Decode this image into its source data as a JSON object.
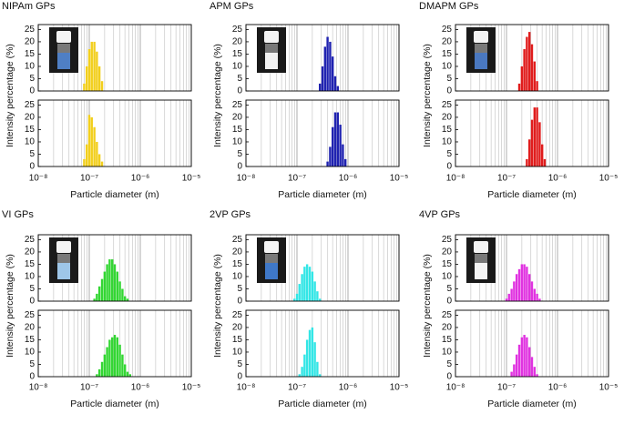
{
  "chart_data": [
    {
      "type": "histogram",
      "title": "NIPAm GPs",
      "xlabel": "Particle diameter (m)",
      "ylabel": "Intensity percentage (%)",
      "color": "#f2cf1d",
      "log_x": true,
      "minor_grid": true,
      "xlim": [
        1e-08,
        1e-05
      ],
      "xticks": [
        {
          "value": 1e-08,
          "label": "10⁻⁸"
        },
        {
          "value": 1e-07,
          "label": "10⁻⁷"
        },
        {
          "value": 1e-06,
          "label": "10⁻⁶"
        },
        {
          "value": 1e-05,
          "label": "10⁻⁵"
        }
      ],
      "ylim": [
        0,
        27
      ],
      "yticks": [
        0,
        5,
        10,
        15,
        20,
        25
      ],
      "subplots": [
        {
          "x": [
            7.94e-08,
            8.91e-08,
            1e-07,
            1.12e-07,
            1.26e-07,
            1.41e-07,
            1.58e-07,
            1.78e-07
          ],
          "values": [
            3,
            10,
            17,
            20,
            20,
            16,
            10,
            4
          ]
        },
        {
          "x": [
            7.94e-08,
            8.91e-08,
            1e-07,
            1.12e-07,
            1.26e-07,
            1.41e-07,
            1.58e-07,
            1.78e-07
          ],
          "values": [
            3,
            9,
            21,
            20,
            16,
            10,
            5,
            2
          ]
        }
      ]
    },
    {
      "type": "histogram",
      "title": "APM GPs",
      "xlabel": "Particle diameter (m)",
      "ylabel": "Intensity percentage (%)",
      "color": "#1f22b0",
      "log_x": true,
      "minor_grid": true,
      "xlim": [
        1e-08,
        1e-05
      ],
      "xticks": [
        {
          "value": 1e-08,
          "label": "10⁻⁸"
        },
        {
          "value": 1e-07,
          "label": "10⁻⁷"
        },
        {
          "value": 1e-06,
          "label": "10⁻⁶"
        },
        {
          "value": 1e-05,
          "label": "10⁻⁵"
        }
      ],
      "ylim": [
        0,
        27
      ],
      "yticks": [
        0,
        5,
        10,
        15,
        20,
        25
      ],
      "subplots": [
        {
          "x": [
            2.82e-07,
            3.16e-07,
            3.55e-07,
            3.98e-07,
            4.47e-07,
            5.01e-07,
            5.62e-07,
            6.31e-07
          ],
          "values": [
            3,
            10,
            18,
            22,
            20,
            14,
            6,
            2
          ]
        },
        {
          "x": [
            3.98e-07,
            4.47e-07,
            5.01e-07,
            5.62e-07,
            6.31e-07,
            7.08e-07,
            7.94e-07,
            8.91e-07
          ],
          "values": [
            2,
            8,
            16,
            22,
            22,
            17,
            9,
            3
          ]
        }
      ]
    },
    {
      "type": "histogram",
      "title": "DMAPM GPs",
      "xlabel": "Particle diameter (m)",
      "ylabel": "Intensity percentage (%)",
      "color": "#e01c1c",
      "log_x": true,
      "minor_grid": true,
      "xlim": [
        1e-08,
        1e-05
      ],
      "xticks": [
        {
          "value": 1e-08,
          "label": "10⁻⁸"
        },
        {
          "value": 1e-07,
          "label": "10⁻⁷"
        },
        {
          "value": 1e-06,
          "label": "10⁻⁶"
        },
        {
          "value": 1e-05,
          "label": "10⁻⁵"
        }
      ],
      "ylim": [
        0,
        27
      ],
      "yticks": [
        0,
        5,
        10,
        15,
        20,
        25
      ],
      "subplots": [
        {
          "x": [
            1.78e-07,
            2e-07,
            2.24e-07,
            2.51e-07,
            2.82e-07,
            3.16e-07,
            3.55e-07,
            3.98e-07
          ],
          "values": [
            3,
            10,
            17,
            22,
            24,
            19,
            12,
            4
          ]
        },
        {
          "x": [
            2.51e-07,
            2.82e-07,
            3.16e-07,
            3.55e-07,
            3.98e-07,
            4.47e-07,
            5.01e-07,
            5.62e-07
          ],
          "values": [
            3,
            11,
            19,
            24,
            24,
            18,
            9,
            3
          ]
        }
      ]
    },
    {
      "type": "histogram",
      "title": "VI GPs",
      "xlabel": "Particle diameter (m)",
      "ylabel": "Intensity percentage (%)",
      "color": "#33d633",
      "log_x": true,
      "minor_grid": true,
      "xlim": [
        1e-08,
        1e-05
      ],
      "xticks": [
        {
          "value": 1e-08,
          "label": "10⁻⁸"
        },
        {
          "value": 1e-07,
          "label": "10⁻⁷"
        },
        {
          "value": 1e-06,
          "label": "10⁻⁶"
        },
        {
          "value": 1e-05,
          "label": "10⁻⁵"
        }
      ],
      "ylim": [
        0,
        27
      ],
      "yticks": [
        0,
        5,
        10,
        15,
        20,
        25
      ],
      "subplots": [
        {
          "x": [
            1.26e-07,
            1.41e-07,
            1.58e-07,
            1.78e-07,
            2e-07,
            2.24e-07,
            2.51e-07,
            2.82e-07,
            3.16e-07,
            3.55e-07,
            3.98e-07,
            4.47e-07,
            5.01e-07,
            5.62e-07
          ],
          "values": [
            1,
            3,
            6,
            9,
            12,
            15,
            17,
            17,
            15,
            12,
            8,
            5,
            2,
            1
          ]
        },
        {
          "x": [
            1.41e-07,
            1.58e-07,
            1.78e-07,
            2e-07,
            2.24e-07,
            2.51e-07,
            2.82e-07,
            3.16e-07,
            3.55e-07,
            3.98e-07,
            4.47e-07,
            5.01e-07,
            5.62e-07,
            6.31e-07
          ],
          "values": [
            1,
            3,
            6,
            9,
            12,
            15,
            16,
            17,
            16,
            13,
            9,
            5,
            2,
            1
          ]
        }
      ]
    },
    {
      "type": "histogram",
      "title": "2VP GPs",
      "xlabel": "Particle diameter (m)",
      "ylabel": "Intensity percentage (%)",
      "color": "#33e6e6",
      "log_x": true,
      "minor_grid": true,
      "xlim": [
        1e-08,
        1e-05
      ],
      "xticks": [
        {
          "value": 1e-08,
          "label": "10⁻⁸"
        },
        {
          "value": 1e-07,
          "label": "10⁻⁷"
        },
        {
          "value": 1e-06,
          "label": "10⁻⁶"
        },
        {
          "value": 1e-05,
          "label": "10⁻⁵"
        }
      ],
      "ylim": [
        0,
        27
      ],
      "yticks": [
        0,
        5,
        10,
        15,
        20,
        25
      ],
      "subplots": [
        {
          "x": [
            8.91e-08,
            1e-07,
            1.12e-07,
            1.26e-07,
            1.41e-07,
            1.58e-07,
            1.78e-07,
            2e-07,
            2.24e-07,
            2.51e-07,
            2.82e-07
          ],
          "values": [
            1,
            3,
            7,
            11,
            14,
            15,
            14,
            12,
            8,
            4,
            1
          ]
        },
        {
          "x": [
            1.12e-07,
            1.26e-07,
            1.41e-07,
            1.58e-07,
            1.78e-07,
            2e-07,
            2.24e-07,
            2.51e-07,
            2.82e-07
          ],
          "values": [
            1,
            4,
            9,
            15,
            19,
            20,
            14,
            6,
            1
          ]
        }
      ]
    },
    {
      "type": "histogram",
      "title": "4VP GPs",
      "xlabel": "Particle diameter (m)",
      "ylabel": "Intensity percentage (%)",
      "color": "#e033e0",
      "log_x": true,
      "minor_grid": true,
      "xlim": [
        1e-08,
        1e-05
      ],
      "xticks": [
        {
          "value": 1e-08,
          "label": "10⁻⁸"
        },
        {
          "value": 1e-07,
          "label": "10⁻⁷"
        },
        {
          "value": 1e-06,
          "label": "10⁻⁶"
        },
        {
          "value": 1e-05,
          "label": "10⁻⁵"
        }
      ],
      "ylim": [
        0,
        27
      ],
      "yticks": [
        0,
        5,
        10,
        15,
        20,
        25
      ],
      "subplots": [
        {
          "x": [
            1e-07,
            1.12e-07,
            1.26e-07,
            1.41e-07,
            1.58e-07,
            1.78e-07,
            2e-07,
            2.24e-07,
            2.51e-07,
            2.82e-07,
            3.16e-07,
            3.55e-07,
            3.98e-07,
            4.47e-07
          ],
          "values": [
            1,
            3,
            5,
            8,
            11,
            13,
            15,
            15,
            14,
            11,
            8,
            5,
            3,
            1
          ]
        },
        {
          "x": [
            1.26e-07,
            1.41e-07,
            1.58e-07,
            1.78e-07,
            2e-07,
            2.24e-07,
            2.51e-07,
            2.82e-07,
            3.16e-07,
            3.55e-07,
            3.98e-07
          ],
          "values": [
            2,
            5,
            9,
            13,
            16,
            17,
            16,
            12,
            8,
            4,
            1
          ]
        }
      ]
    }
  ]
}
